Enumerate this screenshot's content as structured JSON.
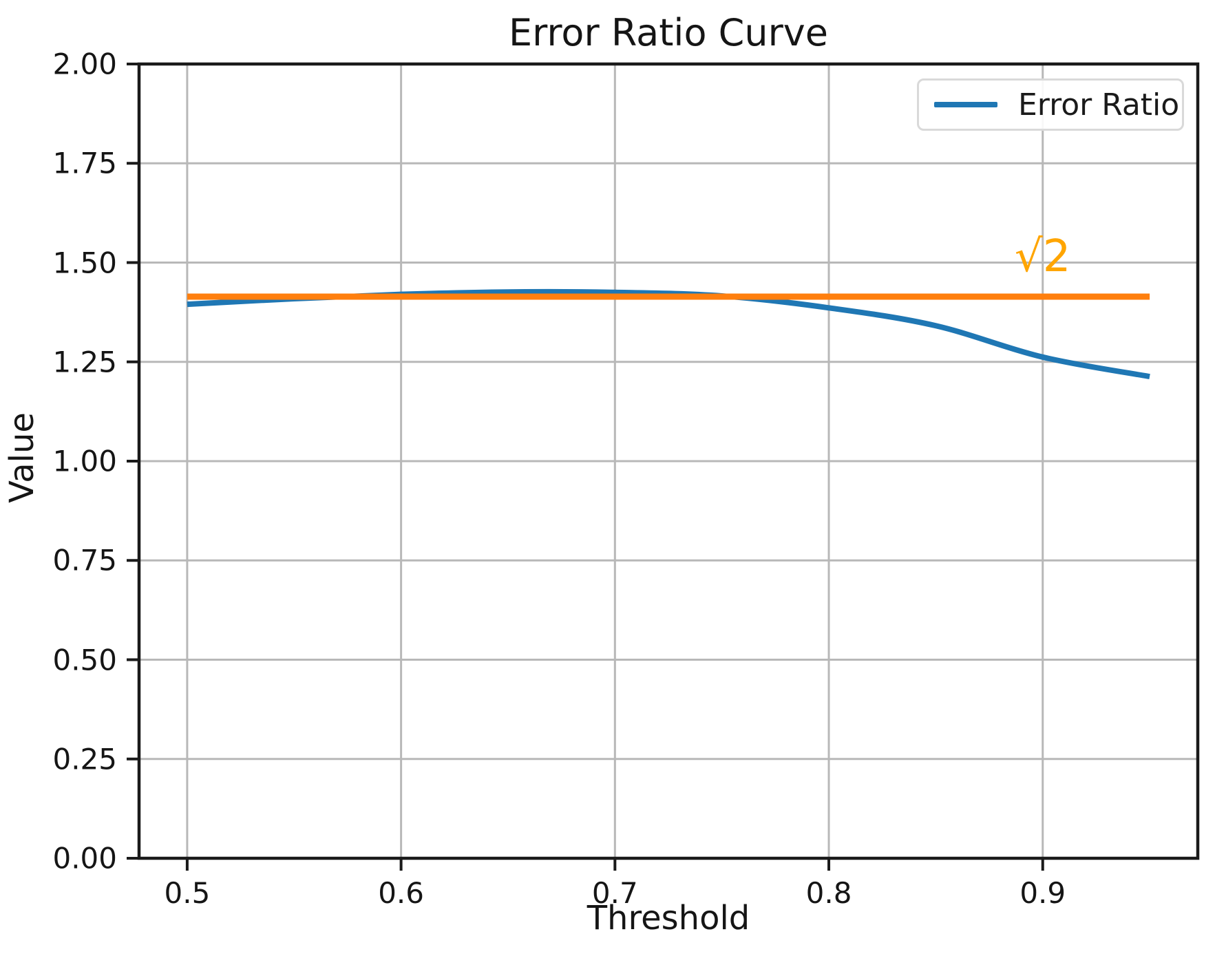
{
  "chart_data": {
    "type": "line",
    "title": "Error Ratio Curve",
    "xlabel": "Threshold",
    "ylabel": "Value",
    "x": [
      0.5,
      0.55,
      0.6,
      0.65,
      0.7,
      0.75,
      0.8,
      0.85,
      0.9,
      0.95
    ],
    "series": [
      {
        "name": "Error Ratio",
        "color": "#1f77b4",
        "values": [
          1.395,
          1.409,
          1.42,
          1.426,
          1.425,
          1.416,
          1.386,
          1.341,
          1.262,
          1.213
        ]
      }
    ],
    "reference_line": {
      "value": 1.41421356,
      "color": "#ff7f0e",
      "x_start": 0.5,
      "x_end": 0.95
    },
    "annotation": {
      "text": "√2",
      "x": 0.9,
      "y": 1.515,
      "color": "#ffa500"
    },
    "xlim": [
      0.4775,
      0.9725
    ],
    "ylim": [
      0.0,
      2.0
    ],
    "xticks": [
      0.5,
      0.6,
      0.7,
      0.8,
      0.9
    ],
    "xtick_labels": [
      "0.5",
      "0.6",
      "0.7",
      "0.8",
      "0.9"
    ],
    "yticks": [
      0.0,
      0.25,
      0.5,
      0.75,
      1.0,
      1.25,
      1.5,
      1.75,
      2.0
    ],
    "ytick_labels": [
      "0.00",
      "0.25",
      "0.50",
      "0.75",
      "1.00",
      "1.25",
      "1.50",
      "1.75",
      "2.00"
    ],
    "grid": true,
    "grid_color": "#b8b8b8",
    "axis_color": "#1a1a1a",
    "legend": {
      "position": "upper right",
      "entries": [
        {
          "label": "Error Ratio",
          "color": "#1f77b4"
        }
      ]
    }
  }
}
